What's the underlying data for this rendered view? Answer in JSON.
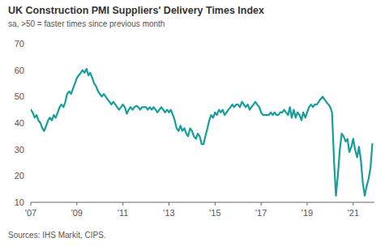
{
  "chart_data": {
    "type": "line",
    "title": "UK Construction PMI Suppliers' Delivery Times Index",
    "subtitle": "sa, >50 = faster times since previous month",
    "source": "Sources: IHS Markit, CIPS.",
    "color": "#169e9a",
    "grid": false,
    "xlim": [
      2007,
      2021.92
    ],
    "xticks": [
      {
        "value": 2007,
        "label": "'07"
      },
      {
        "value": 2009,
        "label": "'09"
      },
      {
        "value": 2011,
        "label": "'11"
      },
      {
        "value": 2013,
        "label": "'13"
      },
      {
        "value": 2015,
        "label": "'15"
      },
      {
        "value": 2017,
        "label": "'17"
      },
      {
        "value": 2019,
        "label": "'19"
      },
      {
        "value": 2021,
        "label": "'21"
      }
    ],
    "ylim": [
      10,
      70
    ],
    "yticks": [
      10,
      20,
      30,
      40,
      50,
      60,
      70
    ],
    "x": [
      2007,
      2007.08,
      2007.17,
      2007.25,
      2007.33,
      2007.42,
      2007.5,
      2007.58,
      2007.67,
      2007.75,
      2007.83,
      2007.92,
      2008,
      2008.08,
      2008.17,
      2008.25,
      2008.33,
      2008.42,
      2008.5,
      2008.58,
      2008.67,
      2008.75,
      2008.83,
      2008.92,
      2009,
      2009.08,
      2009.17,
      2009.25,
      2009.33,
      2009.42,
      2009.5,
      2009.58,
      2009.67,
      2009.75,
      2009.83,
      2009.92,
      2010,
      2010.08,
      2010.17,
      2010.25,
      2010.33,
      2010.42,
      2010.5,
      2010.58,
      2010.67,
      2010.75,
      2010.83,
      2010.92,
      2011,
      2011.08,
      2011.17,
      2011.25,
      2011.33,
      2011.42,
      2011.5,
      2011.58,
      2011.67,
      2011.75,
      2011.83,
      2011.92,
      2012,
      2012.08,
      2012.17,
      2012.25,
      2012.33,
      2012.42,
      2012.5,
      2012.58,
      2012.67,
      2012.75,
      2012.83,
      2012.92,
      2013,
      2013.08,
      2013.17,
      2013.25,
      2013.33,
      2013.42,
      2013.5,
      2013.58,
      2013.67,
      2013.75,
      2013.83,
      2013.92,
      2014,
      2014.08,
      2014.17,
      2014.25,
      2014.33,
      2014.42,
      2014.5,
      2014.58,
      2014.67,
      2014.75,
      2014.83,
      2014.92,
      2015,
      2015.08,
      2015.17,
      2015.25,
      2015.33,
      2015.42,
      2015.5,
      2015.58,
      2015.67,
      2015.75,
      2015.83,
      2015.92,
      2016,
      2016.08,
      2016.17,
      2016.25,
      2016.33,
      2016.42,
      2016.5,
      2016.58,
      2016.67,
      2016.75,
      2016.83,
      2016.92,
      2017,
      2017.08,
      2017.17,
      2017.25,
      2017.33,
      2017.42,
      2017.5,
      2017.58,
      2017.67,
      2017.75,
      2017.83,
      2017.92,
      2018,
      2018.08,
      2018.17,
      2018.25,
      2018.33,
      2018.42,
      2018.5,
      2018.58,
      2018.67,
      2018.75,
      2018.83,
      2018.92,
      2019,
      2019.08,
      2019.17,
      2019.25,
      2019.33,
      2019.42,
      2019.5,
      2019.58,
      2019.67,
      2019.75,
      2019.83,
      2019.92,
      2020,
      2020.08,
      2020.17,
      2020.25,
      2020.33,
      2020.42,
      2020.5,
      2020.58,
      2020.67,
      2020.75,
      2020.83,
      2020.92,
      2021,
      2021.08,
      2021.17,
      2021.25,
      2021.33,
      2021.42,
      2021.5,
      2021.58,
      2021.67,
      2021.75,
      2021.83
    ],
    "values": [
      45,
      44,
      42,
      43,
      41,
      40,
      38,
      37,
      39,
      41,
      42,
      41,
      43,
      42,
      44,
      46,
      47,
      46,
      48,
      51,
      52,
      51,
      53,
      55,
      57,
      58,
      59,
      60,
      59,
      60.5,
      58,
      59,
      57,
      55,
      54,
      52,
      51,
      50,
      51,
      50,
      49,
      48,
      47,
      48,
      47,
      46,
      45,
      46,
      47,
      46,
      43.5,
      45,
      46,
      45,
      46,
      46.5,
      46,
      45,
      46,
      46,
      46,
      45,
      46,
      45,
      46,
      45,
      44,
      45,
      46,
      45,
      44,
      45,
      44,
      45,
      43,
      41,
      38,
      37,
      39,
      37,
      38,
      36,
      35,
      38,
      37,
      35,
      34,
      36,
      35,
      32,
      32,
      35,
      38,
      41,
      43,
      42,
      44,
      43,
      45,
      44,
      45,
      43,
      44,
      45,
      46,
      47,
      46,
      47,
      47,
      46,
      48,
      47,
      46,
      47,
      45,
      46,
      47,
      48,
      47,
      46,
      44,
      43,
      43,
      43,
      43,
      44,
      43,
      44,
      43,
      43,
      44,
      44,
      45,
      44,
      43,
      46,
      42,
      45,
      42,
      44,
      43,
      41,
      44,
      42,
      44,
      46,
      47,
      46,
      47,
      47,
      48,
      49,
      50,
      49,
      48,
      47,
      46,
      44,
      25,
      12.5,
      20,
      30,
      36,
      35,
      33,
      34,
      29,
      31,
      34,
      30,
      27,
      31,
      26,
      17,
      12.5,
      16,
      19,
      23,
      32
    ]
  }
}
